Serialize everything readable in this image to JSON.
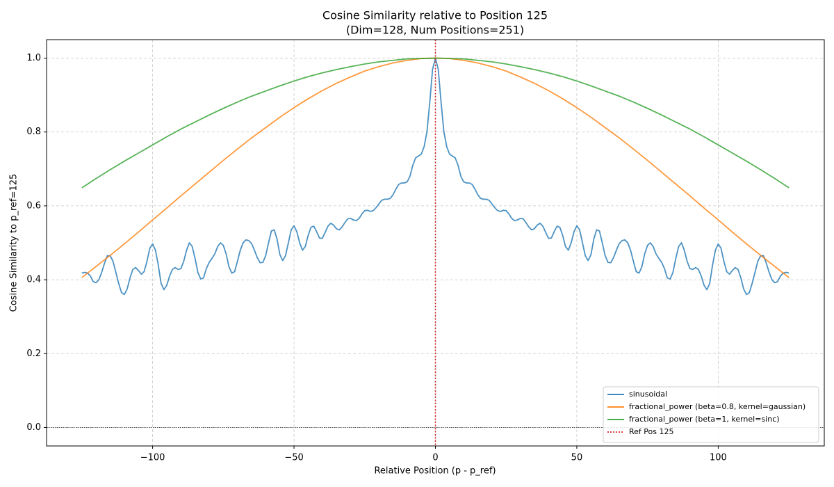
{
  "chart_data": {
    "type": "line",
    "title": "Cosine Similarity relative to Position 125",
    "subtitle": "(Dim=128, Num Positions=251)",
    "x_label": "Relative Position (p - p_ref)",
    "y_label": "Cosine Similarity to p_ref=125",
    "xlim": [
      -137.5,
      137.5
    ],
    "ylim": [
      -0.05,
      1.05
    ],
    "xticks": [
      {
        "value": -100,
        "label": "−100"
      },
      {
        "value": -50,
        "label": "−50"
      },
      0,
      50,
      100
    ],
    "yticks": [
      {
        "value": 0,
        "label": "0.0"
      },
      0.2,
      0.4,
      0.6,
      0.8,
      {
        "value": 1,
        "label": "1.0"
      }
    ],
    "grid": true,
    "legend": "lower right",
    "hline": {
      "y": 0,
      "color": "#000000"
    },
    "ref_line": {
      "name": "Ref Pos 125",
      "x": 0,
      "color": "#d62728"
    },
    "series": [
      {
        "name": "sinusoidal",
        "color": "#1f77b4",
        "x": [
          -125,
          -124,
          -123,
          -122,
          -121,
          -120,
          -119,
          -118,
          -117,
          -116,
          -115,
          -114,
          -113,
          -112,
          -111,
          -110,
          -109,
          -108,
          -107,
          -106,
          -105,
          -104,
          -103,
          -102,
          -101,
          -100,
          -99,
          -98,
          -97,
          -96,
          -95,
          -94,
          -93,
          -92,
          -91,
          -90,
          -89,
          -88,
          -87,
          -86,
          -85,
          -84,
          -83,
          -82,
          -81,
          -80,
          -79,
          -78,
          -77,
          -76,
          -75,
          -74,
          -73,
          -72,
          -71,
          -70,
          -69,
          -68,
          -67,
          -66,
          -65,
          -64,
          -63,
          -62,
          -61,
          -60,
          -59,
          -58,
          -57,
          -56,
          -55,
          -54,
          -53,
          -52,
          -51,
          -50,
          -49,
          -48,
          -47,
          -46,
          -45,
          -44,
          -43,
          -42,
          -41,
          -40,
          -39,
          -38,
          -37,
          -36,
          -35,
          -34,
          -33,
          -32,
          -31,
          -30,
          -29,
          -28,
          -27,
          -26,
          -25,
          -24,
          -23,
          -22,
          -21,
          -20,
          -19,
          -18,
          -17,
          -16,
          -15,
          -14,
          -13,
          -12,
          -11,
          -10,
          -9,
          -8,
          -7,
          -6,
          -5,
          -4,
          -3,
          -2,
          -1,
          0,
          1,
          2,
          3,
          4,
          5,
          6,
          7,
          8,
          9,
          10,
          11,
          12,
          13,
          14,
          15,
          16,
          17,
          18,
          19,
          20,
          21,
          22,
          23,
          24,
          25,
          26,
          27,
          28,
          29,
          30,
          31,
          32,
          33,
          34,
          35,
          36,
          37,
          38,
          39,
          40,
          41,
          42,
          43,
          44,
          45,
          46,
          47,
          48,
          49,
          50,
          51,
          52,
          53,
          54,
          55,
          56,
          57,
          58,
          59,
          60,
          61,
          62,
          63,
          64,
          65,
          66,
          67,
          68,
          69,
          70,
          71,
          72,
          73,
          74,
          75,
          76,
          77,
          78,
          79,
          80,
          81,
          82,
          83,
          84,
          85,
          86,
          87,
          88,
          89,
          90,
          91,
          92,
          93,
          94,
          95,
          96,
          97,
          98,
          99,
          100,
          101,
          102,
          103,
          104,
          105,
          106,
          107,
          108,
          109,
          110,
          111,
          112,
          113,
          114,
          115,
          116,
          117,
          118,
          119,
          120,
          121,
          122,
          123,
          124,
          125
        ],
        "values": [
          0.418,
          0.42,
          0.418,
          0.41,
          0.395,
          0.392,
          0.4,
          0.42,
          0.445,
          0.465,
          0.465,
          0.45,
          0.42,
          0.39,
          0.365,
          0.36,
          0.375,
          0.405,
          0.428,
          0.433,
          0.425,
          0.415,
          0.422,
          0.45,
          0.485,
          0.497,
          0.48,
          0.44,
          0.39,
          0.373,
          0.385,
          0.41,
          0.428,
          0.433,
          0.428,
          0.43,
          0.45,
          0.48,
          0.5,
          0.49,
          0.458,
          0.42,
          0.402,
          0.405,
          0.43,
          0.447,
          0.458,
          0.47,
          0.49,
          0.5,
          0.493,
          0.47,
          0.435,
          0.418,
          0.422,
          0.45,
          0.48,
          0.5,
          0.508,
          0.506,
          0.498,
          0.48,
          0.46,
          0.446,
          0.447,
          0.466,
          0.5,
          0.532,
          0.535,
          0.51,
          0.468,
          0.452,
          0.465,
          0.5,
          0.535,
          0.546,
          0.53,
          0.5,
          0.48,
          0.49,
          0.52,
          0.542,
          0.545,
          0.53,
          0.513,
          0.512,
          0.528,
          0.545,
          0.553,
          0.548,
          0.538,
          0.535,
          0.543,
          0.555,
          0.565,
          0.566,
          0.562,
          0.56,
          0.566,
          0.578,
          0.587,
          0.588,
          0.585,
          0.587,
          0.595,
          0.605,
          0.615,
          0.618,
          0.618,
          0.62,
          0.63,
          0.645,
          0.658,
          0.662,
          0.662,
          0.665,
          0.68,
          0.71,
          0.73,
          0.735,
          0.74,
          0.76,
          0.8,
          0.88,
          0.97,
          1.0,
          0.97,
          0.88,
          0.8,
          0.76,
          0.74,
          0.735,
          0.73,
          0.71,
          0.68,
          0.665,
          0.662,
          0.662,
          0.658,
          0.645,
          0.63,
          0.62,
          0.618,
          0.618,
          0.615,
          0.605,
          0.595,
          0.587,
          0.585,
          0.588,
          0.587,
          0.578,
          0.566,
          0.56,
          0.562,
          0.566,
          0.565,
          0.555,
          0.543,
          0.535,
          0.538,
          0.548,
          0.553,
          0.545,
          0.528,
          0.512,
          0.513,
          0.53,
          0.545,
          0.542,
          0.52,
          0.49,
          0.48,
          0.5,
          0.53,
          0.546,
          0.535,
          0.5,
          0.465,
          0.452,
          0.468,
          0.51,
          0.535,
          0.532,
          0.5,
          0.466,
          0.447,
          0.446,
          0.46,
          0.48,
          0.498,
          0.506,
          0.508,
          0.5,
          0.48,
          0.45,
          0.422,
          0.418,
          0.435,
          0.47,
          0.493,
          0.5,
          0.49,
          0.47,
          0.458,
          0.447,
          0.43,
          0.405,
          0.402,
          0.42,
          0.458,
          0.49,
          0.5,
          0.48,
          0.45,
          0.43,
          0.428,
          0.433,
          0.428,
          0.41,
          0.385,
          0.373,
          0.39,
          0.44,
          0.48,
          0.497,
          0.485,
          0.45,
          0.422,
          0.415,
          0.425,
          0.433,
          0.428,
          0.405,
          0.375,
          0.36,
          0.365,
          0.39,
          0.42,
          0.45,
          0.465,
          0.465,
          0.445,
          0.42,
          0.4,
          0.392,
          0.395,
          0.41,
          0.418,
          0.42,
          0.418
        ]
      },
      {
        "name": "fractional_power (beta=0.8, kernel=gaussian)",
        "color": "#ff7f0e",
        "x": [
          -125,
          -120,
          -115,
          -110,
          -105,
          -100,
          -95,
          -90,
          -85,
          -80,
          -75,
          -70,
          -65,
          -60,
          -55,
          -50,
          -45,
          -40,
          -35,
          -30,
          -25,
          -20,
          -15,
          -10,
          -5,
          0,
          5,
          10,
          15,
          20,
          25,
          30,
          35,
          40,
          45,
          50,
          55,
          60,
          65,
          70,
          75,
          80,
          85,
          90,
          95,
          100,
          105,
          110,
          115,
          120,
          125
        ],
        "values": [
          0.406,
          0.436,
          0.466,
          0.497,
          0.529,
          0.562,
          0.594,
          0.627,
          0.659,
          0.691,
          0.723,
          0.754,
          0.784,
          0.812,
          0.84,
          0.866,
          0.89,
          0.912,
          0.932,
          0.949,
          0.965,
          0.977,
          0.987,
          0.994,
          0.999,
          1.0,
          0.999,
          0.994,
          0.987,
          0.977,
          0.965,
          0.949,
          0.932,
          0.912,
          0.89,
          0.866,
          0.84,
          0.812,
          0.784,
          0.754,
          0.723,
          0.691,
          0.659,
          0.627,
          0.594,
          0.562,
          0.529,
          0.497,
          0.466,
          0.436,
          0.406
        ]
      },
      {
        "name": "fractional_power (beta=1, kernel=sinc)",
        "color": "#2ca02c",
        "x": [
          -125,
          -120,
          -115,
          -110,
          -105,
          -100,
          -95,
          -90,
          -85,
          -80,
          -75,
          -70,
          -65,
          -60,
          -55,
          -50,
          -45,
          -40,
          -35,
          -30,
          -25,
          -20,
          -15,
          -10,
          -5,
          0,
          5,
          10,
          15,
          20,
          25,
          30,
          35,
          40,
          45,
          50,
          55,
          60,
          65,
          70,
          75,
          80,
          85,
          90,
          95,
          100,
          105,
          110,
          115,
          120,
          125
        ],
        "values": [
          0.649,
          0.674,
          0.698,
          0.721,
          0.743,
          0.765,
          0.787,
          0.808,
          0.827,
          0.846,
          0.864,
          0.881,
          0.897,
          0.911,
          0.925,
          0.938,
          0.95,
          0.96,
          0.969,
          0.977,
          0.984,
          0.99,
          0.994,
          0.998,
          0.999,
          1.0,
          0.999,
          0.998,
          0.994,
          0.99,
          0.984,
          0.977,
          0.969,
          0.96,
          0.95,
          0.938,
          0.925,
          0.911,
          0.897,
          0.881,
          0.864,
          0.846,
          0.827,
          0.808,
          0.787,
          0.765,
          0.743,
          0.721,
          0.698,
          0.674,
          0.649
        ]
      }
    ]
  }
}
